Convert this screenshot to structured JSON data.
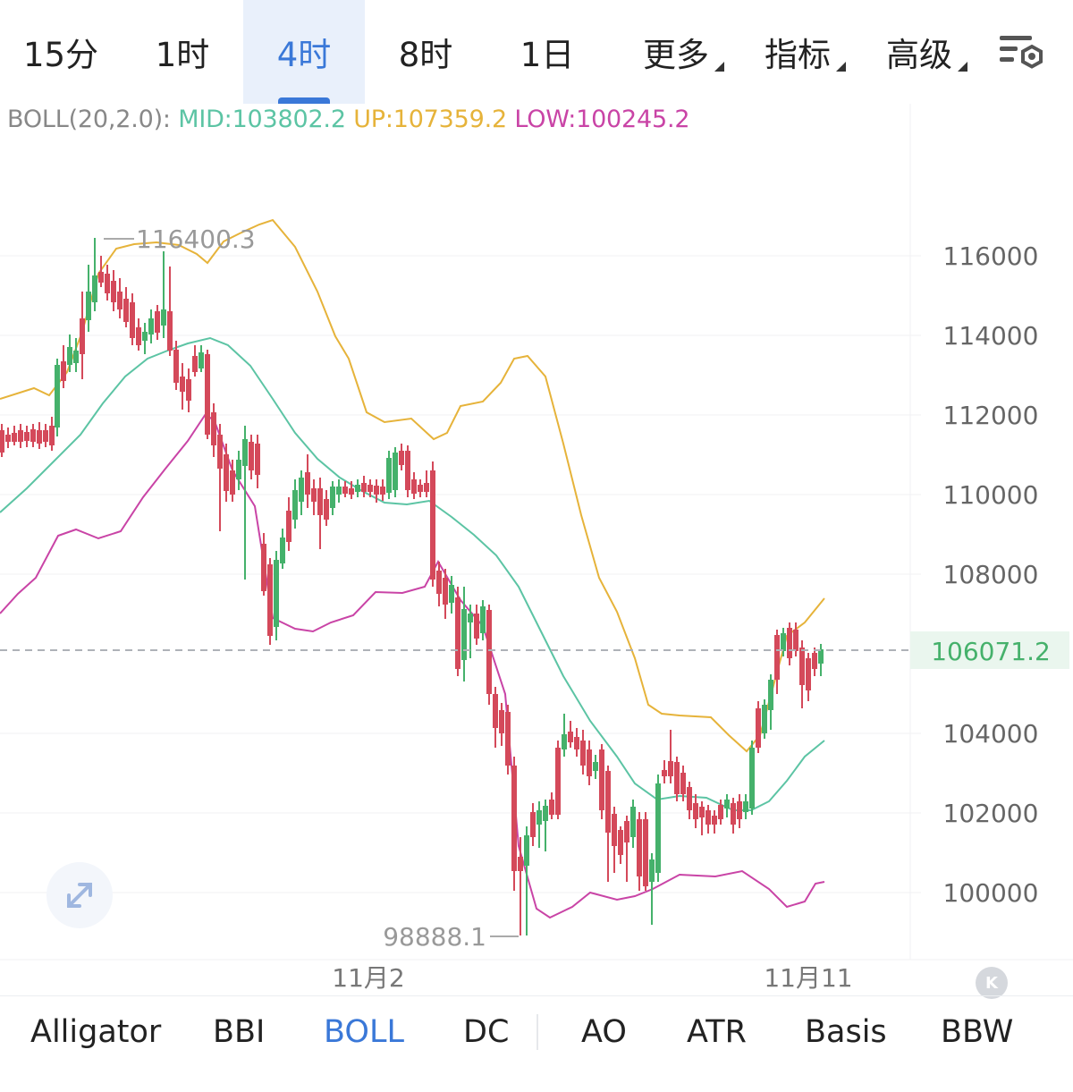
{
  "timeframes": [
    {
      "label": "15分",
      "active": false,
      "dropdown": false
    },
    {
      "label": "1时",
      "active": false,
      "dropdown": false
    },
    {
      "label": "4时",
      "active": true,
      "dropdown": false
    },
    {
      "label": "8时",
      "active": false,
      "dropdown": false
    },
    {
      "label": "1日",
      "active": false,
      "dropdown": false
    },
    {
      "label": "更多",
      "active": false,
      "dropdown": true
    },
    {
      "label": "指标",
      "active": false,
      "dropdown": true
    },
    {
      "label": "高级",
      "active": false,
      "dropdown": true
    }
  ],
  "settings_icon": "chart-settings-icon",
  "legend": {
    "name": "BOLL(20,2.0):",
    "mid": "MID:103802.2",
    "up": "UP:107359.2",
    "low": "LOW:100245.2"
  },
  "chart": {
    "price_axis": [
      "116000",
      "114000",
      "112000",
      "110000",
      "108000",
      "104000",
      "102000",
      "100000"
    ],
    "current_price": "106071.2",
    "high_marker": "116400.3",
    "low_marker": "98888.1",
    "date_labels": [
      "11月2",
      "11月11"
    ],
    "colors": {
      "up": "#45b16b",
      "down": "#d4495a",
      "mid": "#5cc4a4",
      "upper": "#e6b33a",
      "lower": "#c944a6",
      "current_line": "#aeb2b8"
    }
  },
  "expand_icon": "expand-arrows-icon",
  "scroll_end_icon": "scroll-to-latest-icon",
  "scroll_end_label": "K",
  "bottom_tabs": [
    {
      "label": "Alligator",
      "active": false
    },
    {
      "label": "BBI",
      "active": false
    },
    {
      "label": "BOLL",
      "active": true
    },
    {
      "label": "DC",
      "active": false
    },
    {
      "label": "AO",
      "active": false
    },
    {
      "label": "ATR",
      "active": false
    },
    {
      "label": "Basis",
      "active": false
    },
    {
      "label": "BBW",
      "active": false
    }
  ]
}
